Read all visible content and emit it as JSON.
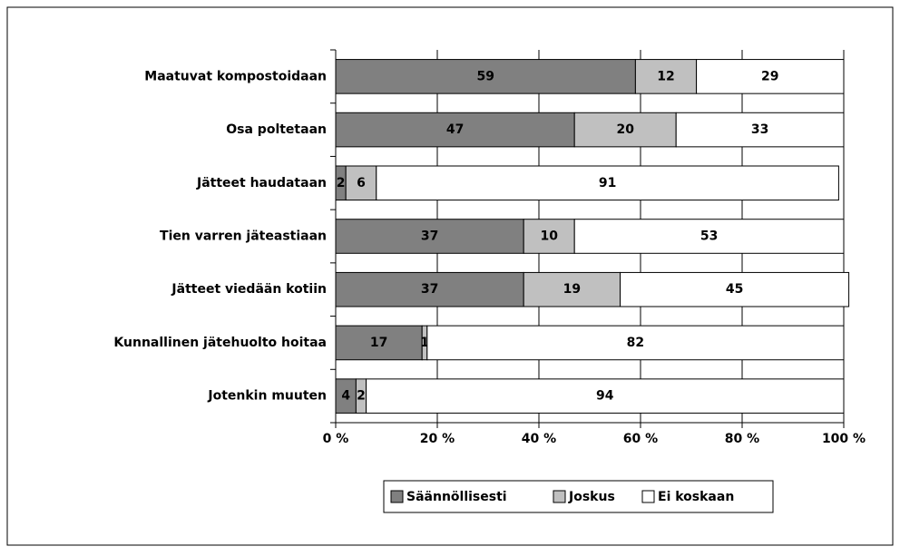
{
  "chart_data": {
    "type": "stacked_barh",
    "categories": [
      "Maatuvat kompostoidaan",
      "Osa poltetaan",
      "Jätteet haudataan",
      "Tien varren jäteastiaan",
      "Jätteet viedään kotiin",
      "Kunnallinen jätehuolto hoitaa",
      "Jotenkin muuten"
    ],
    "series": [
      {
        "name": "Säännöllisesti",
        "color": "#808080",
        "values": [
          59,
          47,
          2,
          37,
          37,
          17,
          4
        ]
      },
      {
        "name": "Joskus",
        "color": "#c0c0c0",
        "values": [
          12,
          20,
          6,
          10,
          19,
          1,
          2
        ]
      },
      {
        "name": "Ei koskaan",
        "color": "#ffffff",
        "values": [
          29,
          33,
          91,
          53,
          45,
          82,
          94
        ]
      }
    ],
    "xlim": [
      0,
      100
    ],
    "xticks": [
      {
        "value": 0,
        "label": "0 %"
      },
      {
        "value": 20,
        "label": "20 %"
      },
      {
        "value": 40,
        "label": "40 %"
      },
      {
        "value": 60,
        "label": "60 %"
      },
      {
        "value": 80,
        "label": "80 %"
      },
      {
        "value": 100,
        "label": "100 %"
      }
    ],
    "grid": true,
    "legend": "bottom"
  }
}
